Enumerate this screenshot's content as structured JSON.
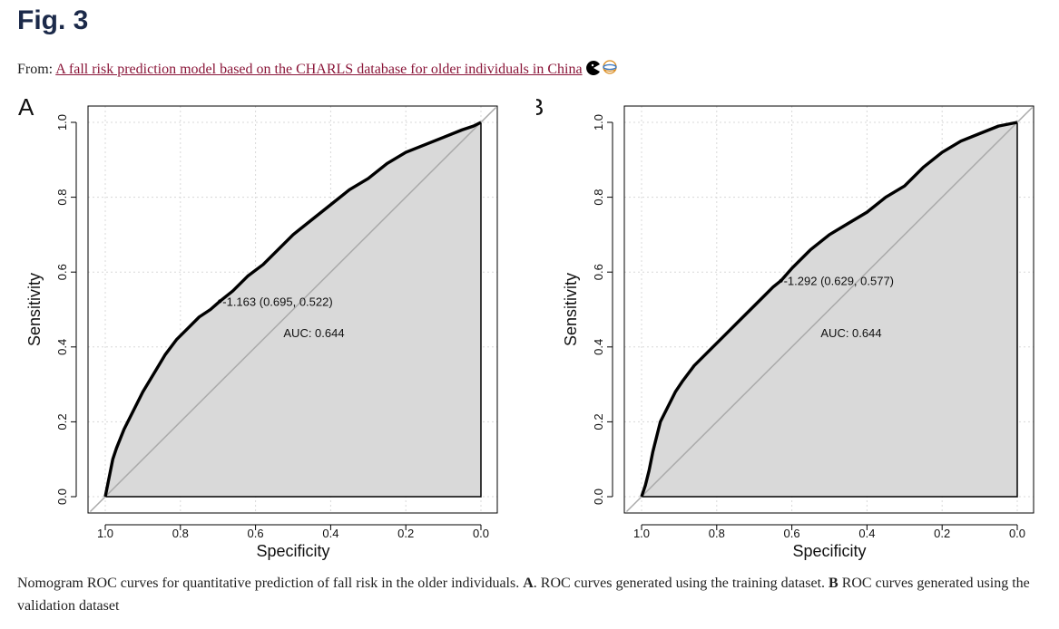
{
  "figure": {
    "title": "Fig. 3",
    "from_prefix": "From: ",
    "article_link": "A fall risk prediction model based on the CHARLS database for older individuals in China"
  },
  "caption": {
    "intro": "Nomogram ROC curves for quantitative prediction of fall risk in the older individuals.",
    "label_a": "A",
    "text_a": ". ROC curves generated using the training dataset.",
    "label_b": "B",
    "text_b": " ROC curves generated using the validation dataset"
  },
  "chart_data": [
    {
      "type": "line",
      "panel_label": "A",
      "xlabel": "Specificity",
      "ylabel": "Sensitivity",
      "xlim": [
        1.0,
        0.0
      ],
      "ylim": [
        0.0,
        1.0
      ],
      "x_reversed": true,
      "xticks": [
        "1.0",
        "0.8",
        "0.6",
        "0.4",
        "0.2",
        "0.0"
      ],
      "yticks": [
        "0.0",
        "0.2",
        "0.4",
        "0.6",
        "0.8",
        "1.0"
      ],
      "grid": true,
      "fill": "#d9d9d9",
      "diagonal_color": "#aaaaaa",
      "curve": {
        "specificity": [
          1.0,
          0.99,
          0.98,
          0.97,
          0.95,
          0.93,
          0.9,
          0.87,
          0.84,
          0.81,
          0.78,
          0.75,
          0.72,
          0.695,
          0.66,
          0.62,
          0.58,
          0.54,
          0.5,
          0.45,
          0.4,
          0.35,
          0.3,
          0.25,
          0.2,
          0.15,
          0.1,
          0.05,
          0.02,
          0.0
        ],
        "sensitivity": [
          0.0,
          0.05,
          0.1,
          0.13,
          0.18,
          0.22,
          0.28,
          0.33,
          0.38,
          0.42,
          0.45,
          0.48,
          0.5,
          0.522,
          0.55,
          0.59,
          0.62,
          0.66,
          0.7,
          0.74,
          0.78,
          0.82,
          0.85,
          0.89,
          0.92,
          0.94,
          0.96,
          0.98,
          0.99,
          1.0
        ]
      },
      "threshold_label": "-1.163 (0.695, 0.522)",
      "threshold_point": {
        "specificity": 0.695,
        "sensitivity": 0.522
      },
      "auc_label": "AUC: 0.644"
    },
    {
      "type": "line",
      "panel_label": "B",
      "xlabel": "Specificity",
      "ylabel": "Sensitivity",
      "xlim": [
        1.0,
        0.0
      ],
      "ylim": [
        0.0,
        1.0
      ],
      "x_reversed": true,
      "xticks": [
        "1.0",
        "0.8",
        "0.6",
        "0.4",
        "0.2",
        "0.0"
      ],
      "yticks": [
        "0.0",
        "0.2",
        "0.4",
        "0.6",
        "0.8",
        "1.0"
      ],
      "grid": true,
      "fill": "#d9d9d9",
      "diagonal_color": "#aaaaaa",
      "curve": {
        "specificity": [
          1.0,
          0.99,
          0.98,
          0.97,
          0.96,
          0.95,
          0.93,
          0.91,
          0.89,
          0.86,
          0.83,
          0.8,
          0.77,
          0.74,
          0.71,
          0.68,
          0.65,
          0.629,
          0.6,
          0.55,
          0.5,
          0.45,
          0.4,
          0.35,
          0.3,
          0.25,
          0.2,
          0.15,
          0.1,
          0.05,
          0.0
        ],
        "sensitivity": [
          0.0,
          0.03,
          0.07,
          0.12,
          0.16,
          0.2,
          0.24,
          0.28,
          0.31,
          0.35,
          0.38,
          0.41,
          0.44,
          0.47,
          0.5,
          0.53,
          0.56,
          0.577,
          0.61,
          0.66,
          0.7,
          0.73,
          0.76,
          0.8,
          0.83,
          0.88,
          0.92,
          0.95,
          0.97,
          0.99,
          1.0
        ]
      },
      "threshold_label": "-1.292 (0.629, 0.577)",
      "threshold_point": {
        "specificity": 0.629,
        "sensitivity": 0.577
      },
      "auc_label": "AUC: 0.644"
    }
  ]
}
